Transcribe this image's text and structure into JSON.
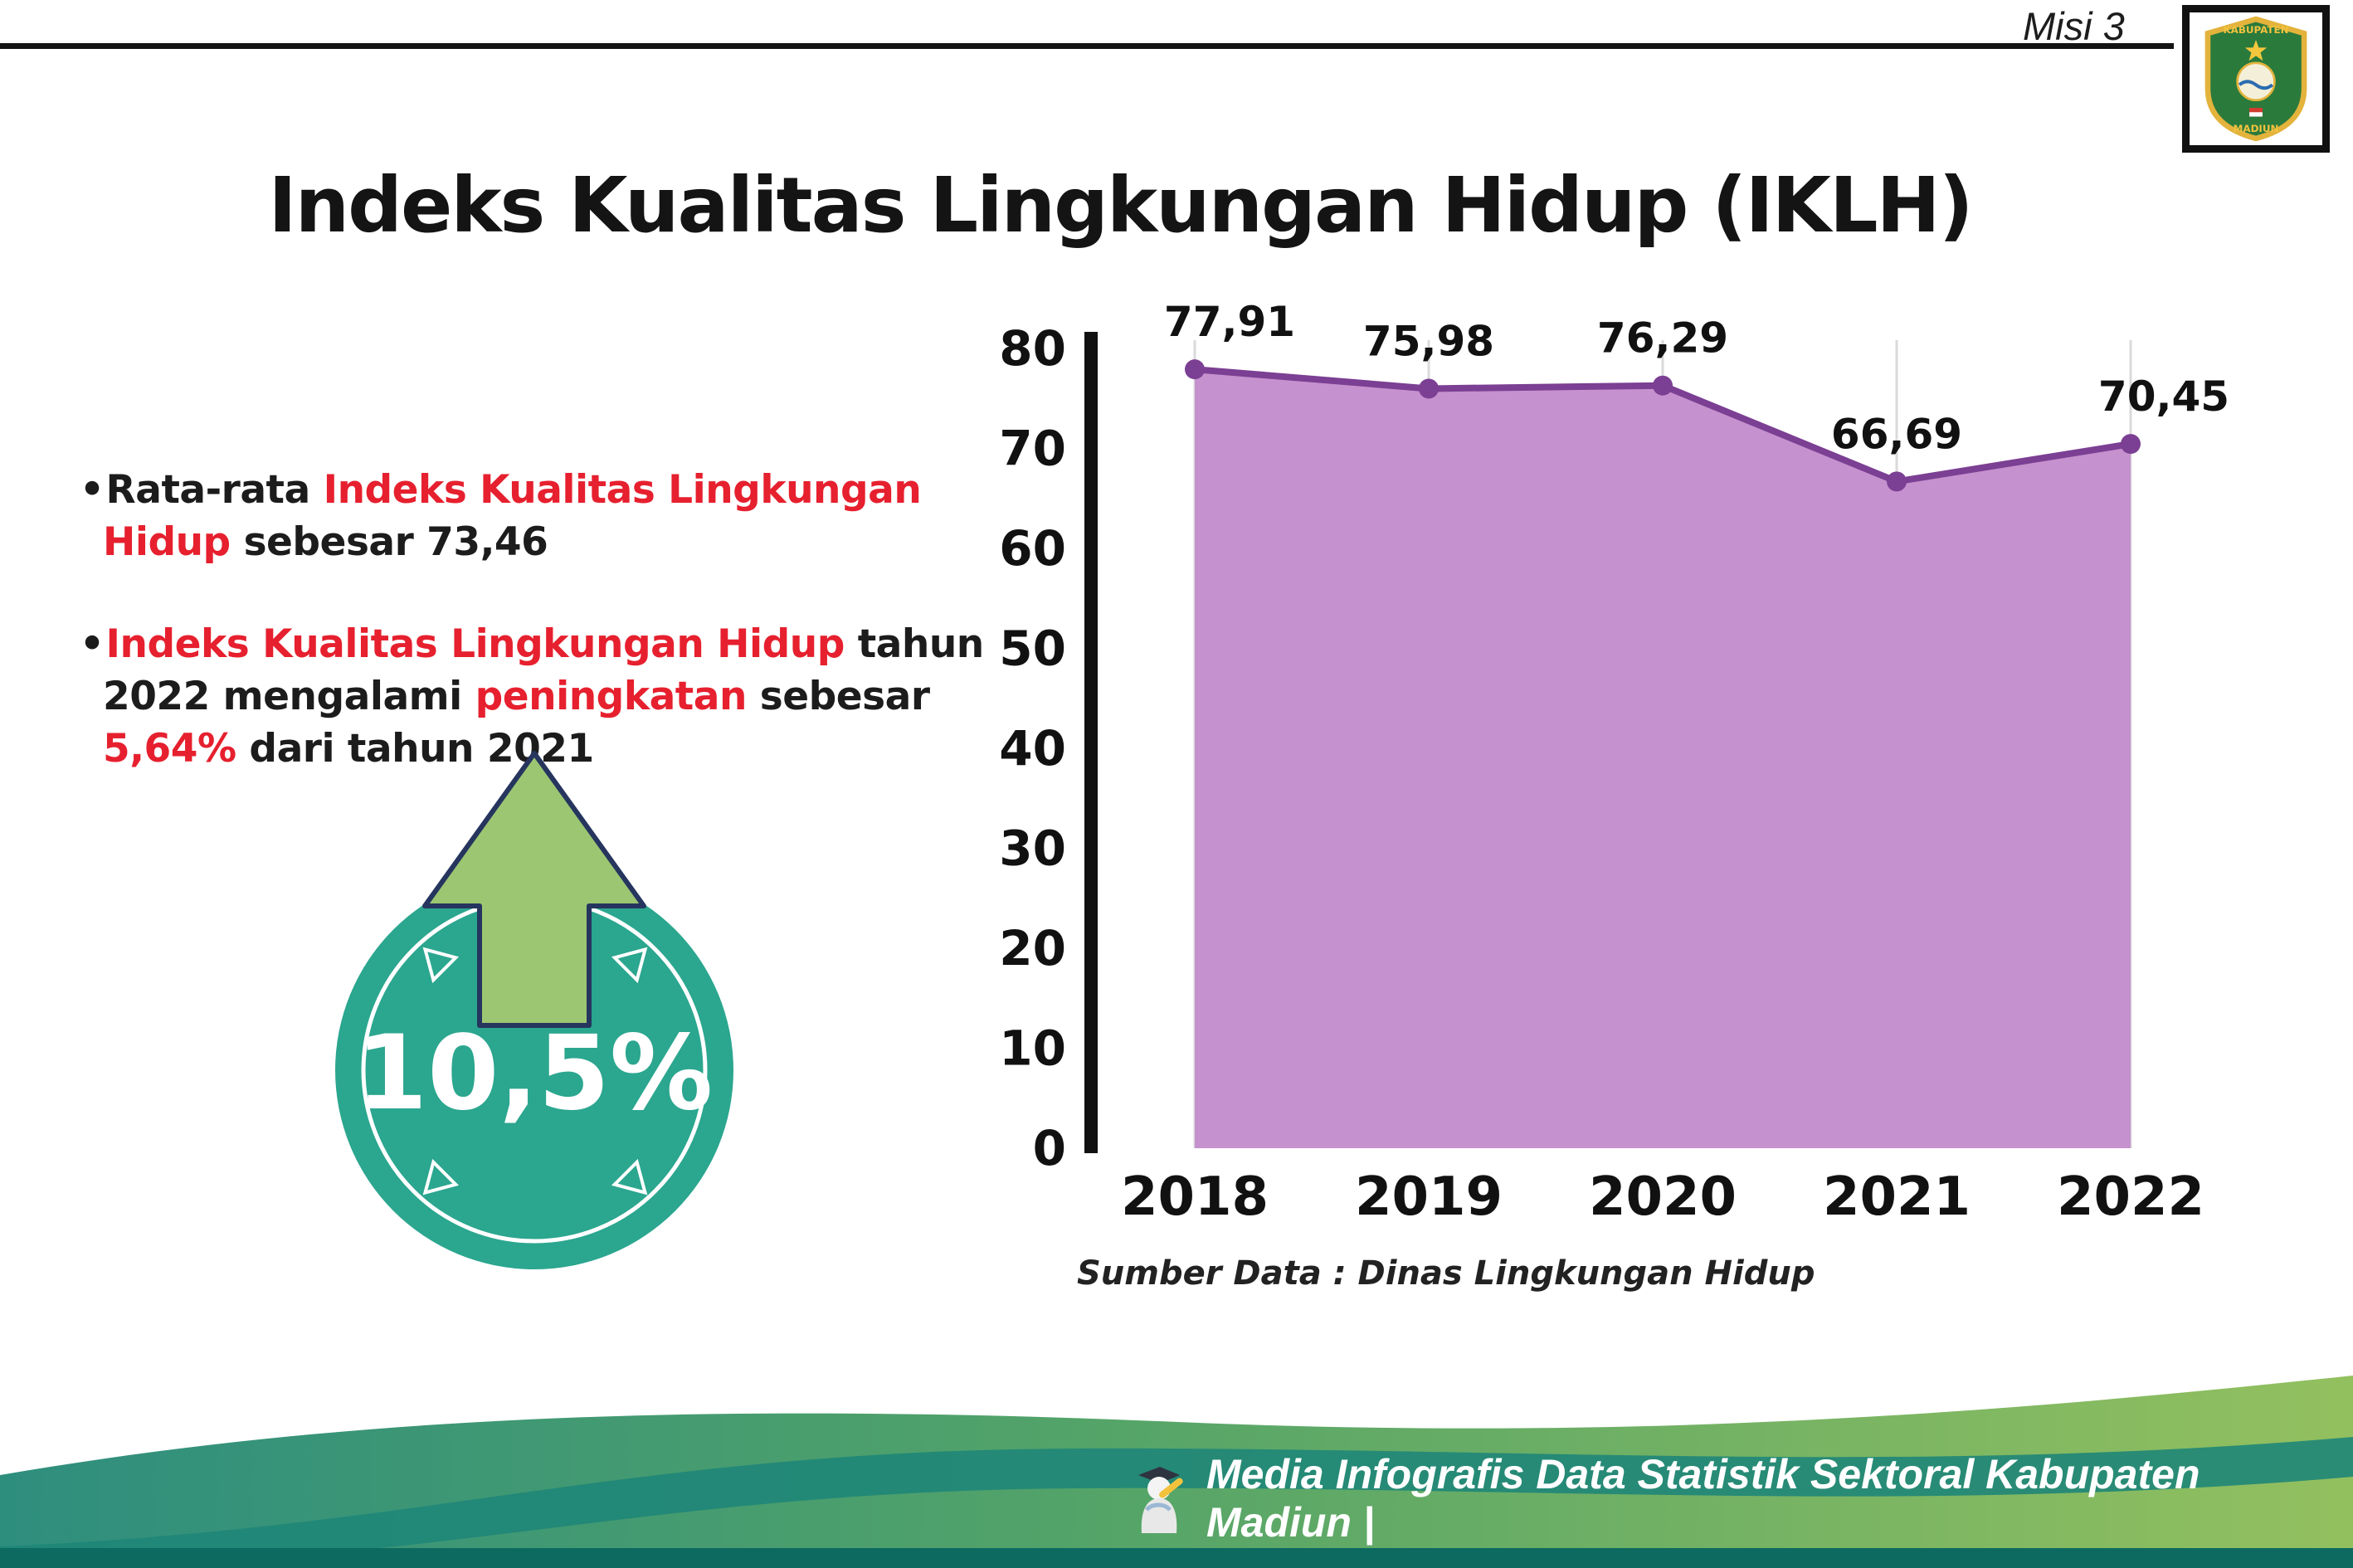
{
  "page": {
    "misi": "Misi 3",
    "title": "Indeks Kualitas Lingkungan Hidup (IKLH)"
  },
  "logo": {
    "top_text": "KABUPATEN",
    "bottom_text": "MADIUN"
  },
  "bullets": {
    "b1": {
      "t1": "Rata-rata ",
      "red1": "Indeks Kualitas Lingkungan Hidup",
      "t2": " sebesar 73,46"
    },
    "b2": {
      "red1": "Indeks Kualitas Lingkungan Hidup",
      "t1": " tahun 2022 mengalami ",
      "red2": "peningkatan",
      "t2": " sebesar ",
      "red3": "5,64%",
      "t3": " dari tahun 2021"
    }
  },
  "badge": {
    "value": "10,5%",
    "circle_color": "#2ba68f",
    "arrow_color": "#9cc672"
  },
  "chart_data": {
    "type": "area",
    "title": "Indeks Kualitas Lingkungan Hidup (IKLH)",
    "categories": [
      "2018",
      "2019",
      "2020",
      "2021",
      "2022"
    ],
    "values": [
      77.91,
      75.98,
      76.29,
      66.69,
      70.45
    ],
    "point_labels": [
      "77,91",
      "75,98",
      "76,29",
      "66,69",
      "70,45"
    ],
    "xlabel": "",
    "ylabel": "",
    "ylim": [
      0,
      80
    ],
    "ytick_step": 10,
    "grid": "vertical",
    "legend": "none",
    "line_color": "#7b3f93",
    "fill_color": "#c591ce",
    "source": "Sumber Data : Dinas Lingkungan Hidup"
  },
  "footer": {
    "text": "Media Infografis Data Statistik Sektoral Kabupaten Madiun |"
  }
}
